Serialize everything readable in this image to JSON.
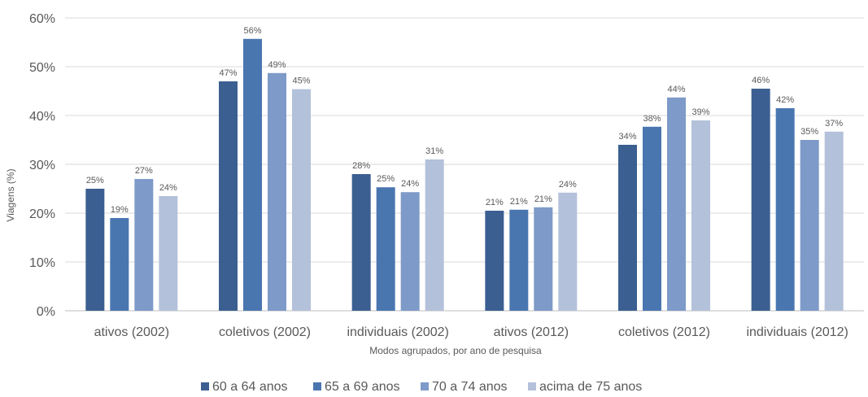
{
  "chart_data": {
    "type": "bar",
    "xlabel": "Modos agrupados, por ano de pesquisa",
    "ylabel": "Viagens (%)",
    "ylim": [
      0,
      60
    ],
    "yticks": [
      "0%",
      "10%",
      "20%",
      "30%",
      "40%",
      "50%",
      "60%"
    ],
    "grid": true,
    "legend_position": "bottom",
    "categories": [
      "ativos (2002)",
      "coletivos (2002)",
      "individuais (2002)",
      "ativos (2012)",
      "coletivos (2012)",
      "individuais (2012)"
    ],
    "series": [
      {
        "name": "60 a 64 anos",
        "color": "#3b5f91",
        "values": [
          25,
          47,
          28,
          20.5,
          34,
          45.5
        ],
        "labels": [
          "25%",
          "47%",
          "28%",
          "21%",
          "34%",
          "46%"
        ]
      },
      {
        "name": "65 a 69 anos",
        "color": "#4a76b0",
        "values": [
          19,
          55.7,
          25.3,
          20.7,
          37.7,
          41.5
        ],
        "labels": [
          "19%",
          "56%",
          "25%",
          "21%",
          "38%",
          "42%"
        ]
      },
      {
        "name": "70 a 74 anos",
        "color": "#7e9ac8",
        "values": [
          27,
          48.7,
          24.3,
          21.2,
          43.7,
          35
        ],
        "labels": [
          "27%",
          "49%",
          "24%",
          "21%",
          "44%",
          "35%"
        ]
      },
      {
        "name": "acima de 75 anos",
        "color": "#b3c1da",
        "values": [
          23.5,
          45.4,
          31,
          24.2,
          39,
          36.7
        ],
        "labels": [
          "24%",
          "45%",
          "31%",
          "24%",
          "39%",
          "37%"
        ]
      }
    ]
  }
}
